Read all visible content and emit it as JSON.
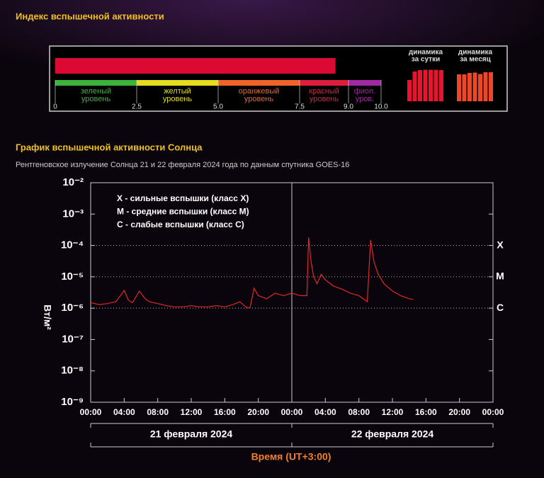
{
  "header": {
    "title": "Индекс вспышечной активности"
  },
  "index": {
    "value": 8.6,
    "color": "#dc0a32",
    "scale": {
      "lim": [
        0,
        10
      ],
      "ticks": [
        0,
        2.5,
        {
          "value": 5,
          "label": "5.0"
        },
        7.5,
        {
          "value": 9,
          "label": "9.0"
        },
        {
          "value": 10,
          "label": "10.0"
        }
      ]
    },
    "levels": [
      {
        "lines": [
          "зеленый",
          "уровень"
        ],
        "color": "#3cb43c"
      },
      {
        "lines": [
          "желтый",
          "уровень"
        ],
        "color": "#e6dc1e"
      },
      {
        "lines": [
          "оранжевый",
          "уровень"
        ],
        "color": "#f06428"
      },
      {
        "lines": [
          "красный",
          "уровень"
        ],
        "color": "#dc1e3c"
      },
      {
        "lines": [
          "фиол.",
          "уров."
        ],
        "color": "#a028a0"
      }
    ]
  },
  "dynamics": [
    {
      "title": [
        "динамика",
        "за сутки"
      ],
      "color": "#e6142d",
      "values": [
        6.0,
        8.4,
        8.8,
        8.9,
        8.9,
        8.9,
        8.8
      ]
    },
    {
      "title": [
        "динамика",
        "за месяц"
      ],
      "color": "#f04628",
      "values": [
        7.6,
        7.6,
        8.0,
        8.1,
        7.7,
        8.2,
        8.2
      ]
    }
  ],
  "chart_data": {
    "type": "line",
    "title": "График вспышечной активности Солнца",
    "subtitle": "Рентгеновское излучение Солнца 21 и 22 февраля 2024 года по данным спутника GOES-16",
    "y_label": "Вт/м²",
    "x_label": "Время (UT+3:00)",
    "log_y": true,
    "legend_lines": [
      "X - сильные вспышки (класс X)",
      "M - средние вспышки (класс M)",
      "C - слабые вспышки (класс C)"
    ],
    "class_lines": [
      {
        "value": 0.0001,
        "label": "X"
      },
      {
        "value": 1e-05,
        "label": "M"
      },
      {
        "value": 1e-06,
        "label": "C"
      }
    ],
    "dates": [
      "21 февраля 2024",
      "22 февраля 2024"
    ],
    "xlim": [
      0,
      48
    ],
    "day_split": 24,
    "xticks": [
      {
        "value": 0,
        "label": "00:00"
      },
      {
        "value": 4,
        "label": "04:00"
      },
      {
        "value": 8,
        "label": "08:00"
      },
      {
        "value": 12,
        "label": "12:00"
      },
      {
        "value": 16,
        "label": "16:00"
      },
      {
        "value": 20,
        "label": "20:00"
      },
      {
        "value": 24,
        "label": "00:00"
      },
      {
        "value": 28,
        "label": "04:00"
      },
      {
        "value": 32,
        "label": "08:00"
      },
      {
        "value": 36,
        "label": "12:00"
      },
      {
        "value": 40,
        "label": "16:00"
      },
      {
        "value": 44,
        "label": "20:00"
      },
      {
        "value": 48,
        "label": "00:00"
      }
    ],
    "ylim": [
      1e-09,
      0.01
    ],
    "yticks": [
      {
        "value": 0.01,
        "label": "10⁻²"
      },
      {
        "value": 0.001,
        "label": "10⁻³"
      },
      {
        "value": 0.0001,
        "label": "10⁻⁴"
      },
      {
        "value": 1e-05,
        "label": "10⁻⁵"
      },
      {
        "value": 1e-06,
        "label": "10⁻⁶"
      },
      {
        "value": 1e-07,
        "label": "10⁻⁷"
      },
      {
        "value": 1e-08,
        "label": "10⁻⁸"
      },
      {
        "value": 1e-09,
        "label": "10⁻⁹"
      }
    ],
    "series": [
      {
        "color": "#e02828",
        "x": [
          0,
          1,
          2,
          3,
          3.5,
          4,
          4.5,
          5,
          5.8,
          6.5,
          7,
          8,
          9,
          10,
          11,
          12,
          13,
          14,
          15,
          16,
          17,
          17.8,
          18.5,
          19,
          19.5,
          20,
          21,
          22,
          23,
          24,
          25,
          25.8,
          26,
          26.3,
          26.6,
          27,
          27.5,
          28,
          29,
          30,
          31,
          32,
          33,
          33.4,
          33.8,
          34.3,
          35,
          36,
          37,
          38,
          38.5
        ],
        "values": [
          1.5e-06,
          1.3e-06,
          1.4e-06,
          1.6e-06,
          2.4e-06,
          3.7e-06,
          1.8e-06,
          1.5e-06,
          3.5e-06,
          2e-06,
          1.6e-06,
          1.4e-06,
          1.2e-06,
          1.1e-06,
          1.1e-06,
          1.2e-06,
          1.1e-06,
          1.1e-06,
          1.2e-06,
          1.1e-06,
          1.3e-06,
          1.6e-06,
          1.1e-06,
          1e-06,
          4.3e-06,
          2.5e-06,
          2e-06,
          3e-06,
          2.5e-06,
          3e-06,
          2.5e-06,
          2.5e-06,
          0.00018,
          3e-05,
          1e-05,
          6e-06,
          1.2e-05,
          8e-06,
          5e-06,
          4e-06,
          3e-06,
          2.5e-06,
          1.6e-06,
          0.00015,
          3e-05,
          1.2e-05,
          6e-06,
          3.5e-06,
          2.5e-06,
          2e-06,
          1.9e-06
        ]
      }
    ]
  }
}
